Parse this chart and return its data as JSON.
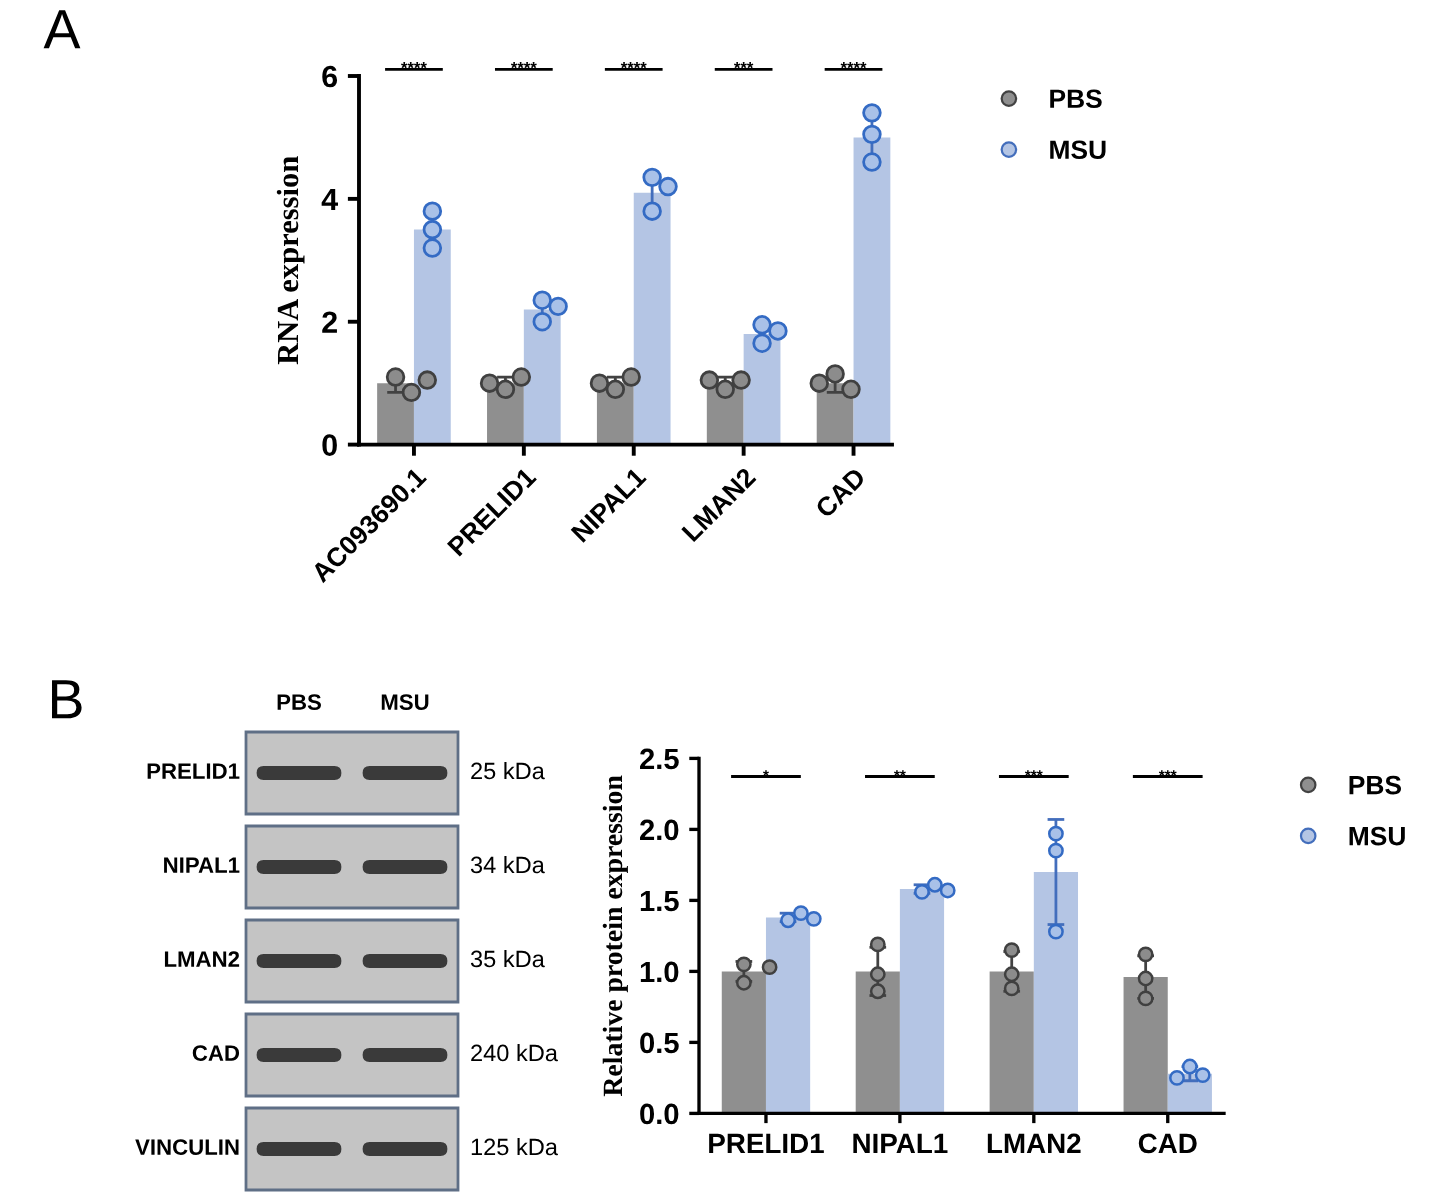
{
  "chart_data": [
    {
      "type": "bar",
      "ylabel": "RNA expression",
      "categories": [
        "AC093690.1",
        "PRELID1",
        "NIPAL1",
        "LMAN2",
        "CAD"
      ],
      "ylim": [
        0,
        6
      ],
      "yticks": [
        0,
        2,
        4,
        6
      ],
      "legend": "right",
      "marker": "circle",
      "series": [
        {
          "name": "PBS",
          "color": "#8f8f8f",
          "values": [
            1.0,
            1.0,
            1.0,
            1.0,
            1.0
          ],
          "errors": [
            0.15,
            0.1,
            0.1,
            0.1,
            0.15
          ]
        },
        {
          "name": "MSU",
          "color": "#b4c5e4",
          "values": [
            3.5,
            2.2,
            4.1,
            1.8,
            5.0
          ],
          "errors": [
            0.3,
            0.2,
            0.3,
            0.15,
            0.4
          ]
        },
        {
          "type": "scatter",
          "color": "#8c8c8c",
          "x": [
            "AC093690.1",
            "AC093690.1",
            "AC093690.1",
            "PRELID1",
            "PRELID1",
            "PRELID1",
            "NIPAL1",
            "NIPAL1",
            "NIPAL1",
            "LMAN2",
            "LMAN2",
            "LMAN2",
            "CAD",
            "CAD",
            "CAD"
          ],
          "values": [
            1.1,
            0.85,
            1.05,
            0.9,
            1.1,
            1.0,
            0.9,
            1.1,
            1.0,
            0.9,
            1.05,
            1.05,
            1.15,
            0.9,
            1.0
          ]
        },
        {
          "type": "scatter",
          "color": "#a9c1e8",
          "x": [
            "AC093690.1",
            "AC093690.1",
            "AC093690.1",
            "PRELID1",
            "PRELID1",
            "PRELID1",
            "NIPAL1",
            "NIPAL1",
            "NIPAL1",
            "LMAN2",
            "LMAN2",
            "LMAN2",
            "CAD",
            "CAD",
            "CAD"
          ],
          "values": [
            3.8,
            3.5,
            3.2,
            2.35,
            2.0,
            2.25,
            4.35,
            3.8,
            4.2,
            1.95,
            1.65,
            1.85,
            5.4,
            5.05,
            4.6
          ]
        }
      ],
      "annotations": [
        "A",
        "****",
        "****",
        "****",
        "***",
        "****"
      ]
    },
    {
      "type": "other",
      "categories": [
        "PBS",
        "MSU"
      ],
      "y_categories": [
        "PRELID1",
        "NIPAL1",
        "LMAN2",
        "CAD",
        "VINCULIN"
      ],
      "y2_categories": [
        "25 kDa",
        "34 kDa",
        "35 kDa",
        "240 kDa",
        "125 kDa"
      ],
      "annotations": [
        "B"
      ]
    },
    {
      "type": "bar",
      "ylabel": "Relative protein expression",
      "categories": [
        "PRELID1",
        "NIPAL1",
        "LMAN2",
        "CAD"
      ],
      "ylim": [
        0,
        2.5
      ],
      "yticks": [
        {
          "value": 0,
          "label": "0.0"
        },
        {
          "value": 0.5,
          "label": "0.5"
        },
        {
          "value": 1,
          "label": "1.0"
        },
        {
          "value": 1.5,
          "label": "1.5"
        },
        {
          "value": 2,
          "label": "2.0"
        },
        {
          "value": 2.5,
          "label": "2.5"
        }
      ],
      "legend": "right",
      "marker": "circle",
      "series": [
        {
          "name": "PBS",
          "color": "#8f8f8f",
          "values": [
            1.0,
            1.0,
            1.0,
            0.96
          ],
          "errors": [
            0.07,
            0.17,
            0.14,
            0.15
          ]
        },
        {
          "name": "MSU",
          "color": "#b4c5e4",
          "values": [
            1.38,
            1.58,
            1.7,
            0.28
          ],
          "errors": [
            0.03,
            0.03,
            0.37,
            0.05
          ]
        },
        {
          "type": "scatter",
          "color": "#8c8c8c",
          "x": [
            "PRELID1",
            "PRELID1",
            "PRELID1",
            "NIPAL1",
            "NIPAL1",
            "NIPAL1",
            "LMAN2",
            "LMAN2",
            "LMAN2",
            "CAD",
            "CAD",
            "CAD"
          ],
          "values": [
            1.05,
            0.92,
            1.03,
            1.19,
            0.98,
            0.86,
            0.88,
            1.15,
            0.98,
            1.12,
            0.95,
            0.81
          ]
        },
        {
          "type": "scatter",
          "color": "#a9c1e8",
          "x": [
            "PRELID1",
            "PRELID1",
            "PRELID1",
            "NIPAL1",
            "NIPAL1",
            "NIPAL1",
            "LMAN2",
            "LMAN2",
            "LMAN2",
            "CAD",
            "CAD",
            "CAD"
          ],
          "values": [
            1.36,
            1.41,
            1.37,
            1.56,
            1.61,
            1.57,
            1.97,
            1.85,
            1.28,
            0.33,
            0.27,
            0.25
          ]
        }
      ],
      "annotations": [
        "*",
        "**",
        "***",
        "***"
      ]
    }
  ]
}
